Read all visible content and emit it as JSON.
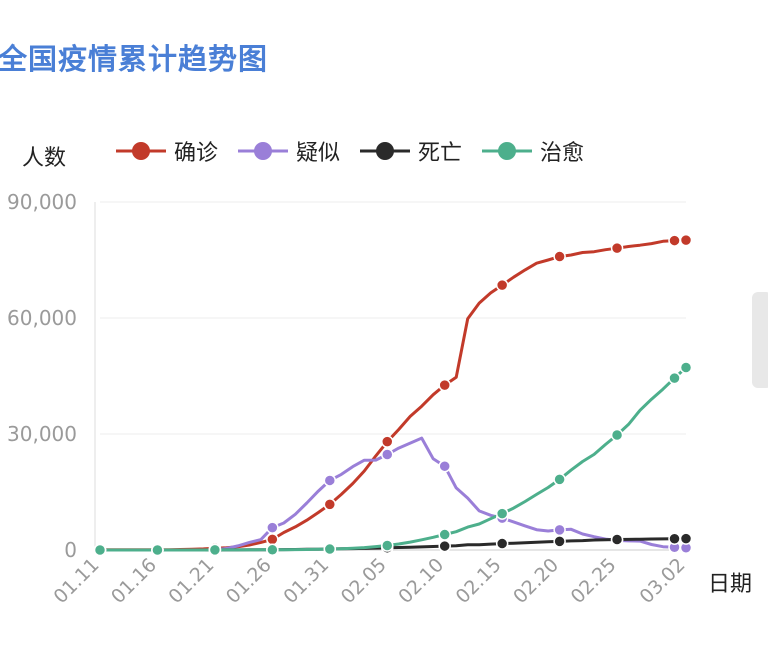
{
  "page": {
    "title": "全国疫情累计趋势图"
  },
  "chart_data": {
    "type": "line",
    "ylabel": "人数",
    "xlabel": "日期",
    "ylim": [
      0,
      90000
    ],
    "yticks": [
      0,
      30000,
      60000,
      90000
    ],
    "ytick_labels": [
      "0",
      "30,000",
      "60,000",
      "90,000"
    ],
    "grid": true,
    "legend_position": "top",
    "x": [
      "01.11",
      "01.12",
      "01.13",
      "01.14",
      "01.15",
      "01.16",
      "01.17",
      "01.18",
      "01.19",
      "01.20",
      "01.21",
      "01.22",
      "01.23",
      "01.24",
      "01.25",
      "01.26",
      "01.27",
      "01.28",
      "01.29",
      "01.30",
      "01.31",
      "02.01",
      "02.02",
      "02.03",
      "02.04",
      "02.05",
      "02.06",
      "02.07",
      "02.08",
      "02.09",
      "02.10",
      "02.11",
      "02.12",
      "02.13",
      "02.14",
      "02.15",
      "02.16",
      "02.17",
      "02.18",
      "02.19",
      "02.20",
      "02.21",
      "02.22",
      "02.23",
      "02.24",
      "02.25",
      "02.26",
      "02.27",
      "02.28",
      "02.29",
      "03.01",
      "03.02"
    ],
    "xtick_labels": [
      "01.11",
      "01.16",
      "01.21",
      "01.26",
      "01.31",
      "02.05",
      "02.10",
      "02.15",
      "02.20",
      "02.25",
      "03.02"
    ],
    "series": [
      {
        "name": "确诊",
        "color": "#c23a2a",
        "values": [
          41,
          41,
          41,
          41,
          41,
          45,
          62,
          121,
          198,
          291,
          440,
          571,
          830,
          1287,
          1975,
          2744,
          4515,
          5974,
          7711,
          9692,
          11791,
          14380,
          17205,
          20438,
          24324,
          28018,
          31161,
          34546,
          37198,
          40171,
          42638,
          44653,
          59804,
          63851,
          66492,
          68500,
          70548,
          72436,
          74185,
          75002,
          75891,
          76288,
          76936,
          77150,
          77658,
          78064,
          78497,
          78824,
          79251,
          79824,
          80026,
          80151
        ]
      },
      {
        "name": "疑似",
        "color": "#9a7fd8",
        "values": [
          0,
          0,
          0,
          0,
          0,
          0,
          0,
          0,
          0,
          0,
          0,
          393,
          1072,
          1965,
          2684,
          5794,
          6973,
          9239,
          12167,
          15238,
          17988,
          19544,
          21558,
          23214,
          23260,
          24702,
          26359,
          27657,
          28942,
          23589,
          21675,
          16067,
          13435,
          10109,
          8969,
          8228,
          7264,
          6242,
          5248,
          4922,
          5206,
          5365,
          4148,
          3434,
          2824,
          2491,
          2358,
          2308,
          1418,
          851,
          715,
          587
        ]
      },
      {
        "name": "死亡",
        "color": "#2a2a2a",
        "values": [
          1,
          1,
          1,
          1,
          2,
          2,
          2,
          2,
          3,
          6,
          9,
          17,
          25,
          41,
          56,
          80,
          106,
          132,
          170,
          213,
          259,
          304,
          361,
          425,
          490,
          563,
          636,
          722,
          811,
          908,
          1016,
          1113,
          1367,
          1380,
          1523,
          1665,
          1770,
          1868,
          2004,
          2118,
          2236,
          2345,
          2442,
          2592,
          2663,
          2715,
          2744,
          2788,
          2835,
          2870,
          2912,
          2943
        ]
      },
      {
        "name": "治愈",
        "color": "#4daf8c",
        "values": [
          0,
          0,
          0,
          0,
          0,
          1,
          1,
          3,
          5,
          10,
          25,
          28,
          34,
          38,
          49,
          51,
          60,
          103,
          124,
          171,
          243,
          328,
          475,
          632,
          892,
          1153,
          1540,
          2050,
          2649,
          3281,
          3996,
          4740,
          5911,
          6723,
          8096,
          9419,
          10844,
          12552,
          14376,
          16155,
          18264,
          20659,
          22888,
          24734,
          27323,
          29745,
          32495,
          36117,
          39002,
          41625,
          44462,
          47204
        ]
      }
    ]
  }
}
